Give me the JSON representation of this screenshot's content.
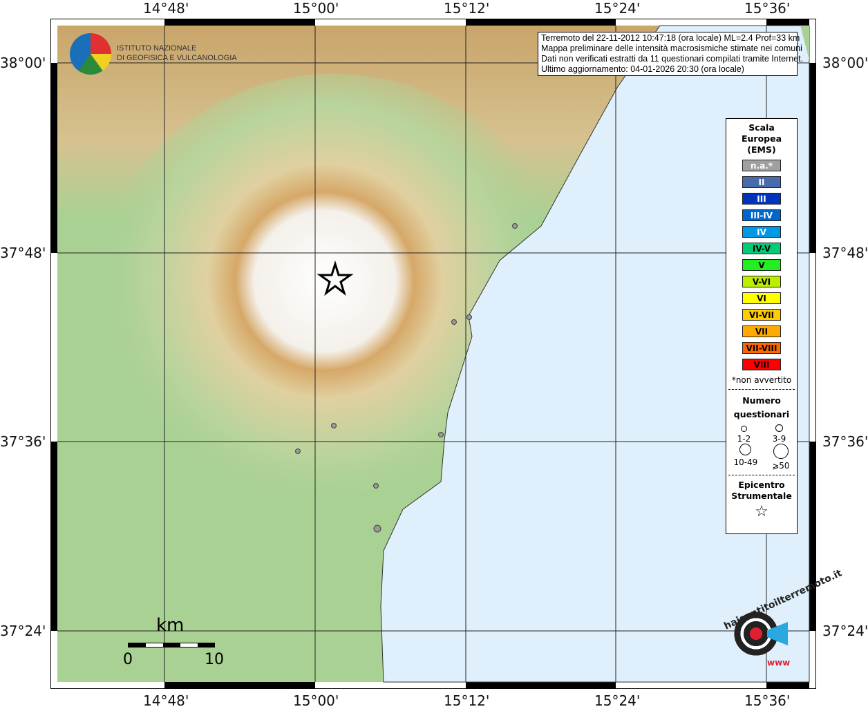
{
  "axes": {
    "lon_ticks": [
      "14°48'",
      "15°00'",
      "15°12'",
      "15°24'",
      "15°36'"
    ],
    "lat_ticks": [
      "38°00'",
      "37°48'",
      "37°36'",
      "37°24'"
    ]
  },
  "logo": {
    "line1": "ISTITUTO NAZIONALE",
    "line2": "DI GEOFISICA E VULCANOLOGIA"
  },
  "info": {
    "lines": [
      "Terremoto del 22-11-2012 10:47:18 (ora locale) ML=2.4 Prof=33 km",
      "Mappa preliminare delle intensità macrosismiche stimate nei comuni",
      "Dati non verificati estratti da 11 questionari compilati tramite Internet.",
      "Ultimo aggiornamento: 04-01-2026 20:30 (ora locale)"
    ]
  },
  "legend": {
    "title": [
      "Scala",
      "Europea",
      "(EMS)"
    ],
    "scale": [
      {
        "label": "n.a.*",
        "color": "#a0a0a0",
        "text": "#fff"
      },
      {
        "label": "II",
        "color": "#4a6aae",
        "text": "#fff"
      },
      {
        "label": "III",
        "color": "#0033bb",
        "text": "#fff"
      },
      {
        "label": "III-IV",
        "color": "#0066cc",
        "text": "#fff"
      },
      {
        "label": "IV",
        "color": "#0099e6",
        "text": "#fff"
      },
      {
        "label": "IV-V",
        "color": "#00cc77",
        "text": "#000"
      },
      {
        "label": "V",
        "color": "#22ee22",
        "text": "#000"
      },
      {
        "label": "V-VI",
        "color": "#bbee00",
        "text": "#000"
      },
      {
        "label": "VI",
        "color": "#ffff00",
        "text": "#000"
      },
      {
        "label": "VI-VII",
        "color": "#ffcc00",
        "text": "#000"
      },
      {
        "label": "VII",
        "color": "#ffaa00",
        "text": "#000"
      },
      {
        "label": "VII-VIII",
        "color": "#ff6600",
        "text": "#000"
      },
      {
        "label": "VIII",
        "color": "#ff0000",
        "text": "#000"
      }
    ],
    "note": "*non avvertito",
    "count_title": [
      "Numero",
      "questionari"
    ],
    "counts": [
      "1-2",
      "3-9",
      "10-49",
      "⩾50"
    ],
    "epi_title": [
      "Epicentro",
      "Strumentale"
    ]
  },
  "scalebar": {
    "unit": "km",
    "min": "0",
    "max": "10"
  },
  "brand": {
    "text": "haisentitoilterremoto.it",
    "url": "www"
  },
  "colors": {
    "sea": "#dff0fc",
    "points": "#999999"
  }
}
